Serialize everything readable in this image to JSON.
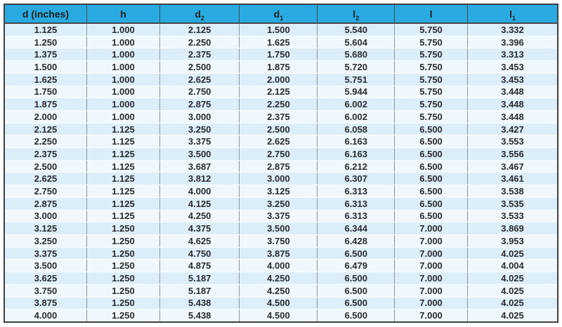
{
  "table": {
    "title": "dimension-specification-table",
    "unit_note": "inches",
    "columns": [
      {
        "base": "d (inches)",
        "sub": ""
      },
      {
        "base": "h",
        "sub": ""
      },
      {
        "base": "d",
        "sub": "2"
      },
      {
        "base": "d",
        "sub": "1"
      },
      {
        "base": "l",
        "sub": "2"
      },
      {
        "base": "l",
        "sub": ""
      },
      {
        "base": "l",
        "sub": "1"
      }
    ],
    "rows": [
      [
        "1.125",
        "1.000",
        "2.125",
        "1.500",
        "5.540",
        "5.750",
        "3.332"
      ],
      [
        "1.250",
        "1.000",
        "2.250",
        "1.625",
        "5.604",
        "5.750",
        "3.396"
      ],
      [
        "1.375",
        "1.000",
        "2.375",
        "1.750",
        "5.680",
        "5.750",
        "3.313"
      ],
      [
        "1.500",
        "1.000",
        "2.500",
        "1.875",
        "5.720",
        "5.750",
        "3.453"
      ],
      [
        "1.625",
        "1.000",
        "2.625",
        "2.000",
        "5.751",
        "5.750",
        "3.453"
      ],
      [
        "1.750",
        "1.000",
        "2.750",
        "2.125",
        "5.944",
        "5.750",
        "3.448"
      ],
      [
        "1.875",
        "1.000",
        "2.875",
        "2.250",
        "6.002",
        "5.750",
        "3.448"
      ],
      [
        "2.000",
        "1.000",
        "3.000",
        "2.375",
        "6.002",
        "5.750",
        "3.448"
      ],
      [
        "2.125",
        "1.125",
        "3.250",
        "2.500",
        "6.058",
        "6.500",
        "3.427"
      ],
      [
        "2.250",
        "1.125",
        "3.375",
        "2.625",
        "6.163",
        "6.500",
        "3.553"
      ],
      [
        "2.375",
        "1.125",
        "3.500",
        "2.750",
        "6.163",
        "6.500",
        "3.556"
      ],
      [
        "2.500",
        "1.125",
        "3.687",
        "2.875",
        "6.212",
        "6.500",
        "3.467"
      ],
      [
        "2.625",
        "1.125",
        "3.812",
        "3.000",
        "6.307",
        "6.500",
        "3.461"
      ],
      [
        "2.750",
        "1.125",
        "4.000",
        "3.125",
        "6.313",
        "6.500",
        "3.538"
      ],
      [
        "2.875",
        "1.125",
        "4.125",
        "3.250",
        "6.313",
        "6.500",
        "3.535"
      ],
      [
        "3.000",
        "1.125",
        "4.250",
        "3.375",
        "6.313",
        "6.500",
        "3.533"
      ],
      [
        "3.125",
        "1.250",
        "4.375",
        "3.500",
        "6.344",
        "7.000",
        "3.869"
      ],
      [
        "3.250",
        "1.250",
        "4.625",
        "3.750",
        "6.428",
        "7.000",
        "3.953"
      ],
      [
        "3.375",
        "1.250",
        "4.750",
        "3.875",
        "6.500",
        "7.000",
        "4.025"
      ],
      [
        "3.500",
        "1.250",
        "4.875",
        "4.000",
        "6.479",
        "7.000",
        "4.004"
      ],
      [
        "3.625",
        "1.250",
        "5.187",
        "4.250",
        "6.500",
        "7.000",
        "4.025"
      ],
      [
        "3.750",
        "1.250",
        "5.187",
        "4.250",
        "6.500",
        "7.000",
        "4.025"
      ],
      [
        "3.875",
        "1.250",
        "5.438",
        "4.500",
        "6.500",
        "7.000",
        "4.025"
      ],
      [
        "4.000",
        "1.250",
        "5.438",
        "4.500",
        "6.500",
        "7.000",
        "4.025"
      ]
    ],
    "colors": {
      "header_bg": "#29abe2",
      "row_stripe_blue": "#dceef9",
      "row_stripe_light": "#f0f8fd",
      "outer_border": "#414042",
      "column_divider": "#8d9599",
      "text": "#2b2b2c"
    }
  }
}
